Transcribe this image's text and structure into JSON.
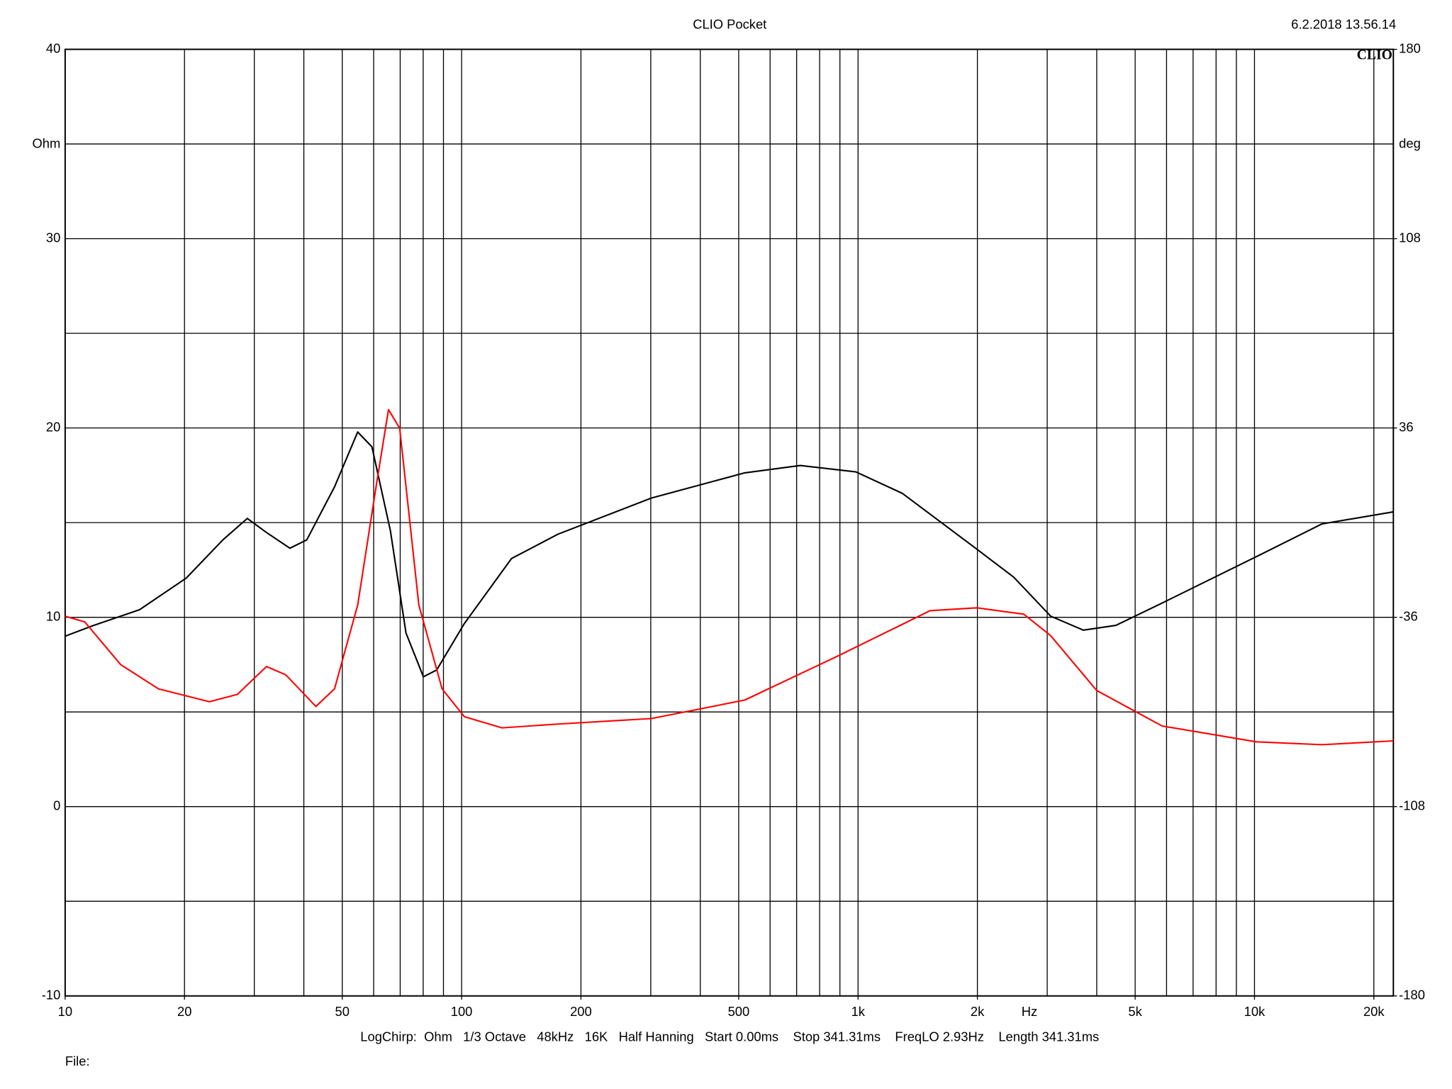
{
  "chart_data": {
    "type": "line",
    "title": "CLIO Pocket",
    "timestamp": "6.2.2018 13.56.14",
    "logo": "CLIO",
    "footer": "LogChirp:  Ohm   1/3 Octave   48kHz   16K   Half Hanning   Start 0.00ms    Stop 341.31ms    FreqLO 2.93Hz    Length 341.31ms",
    "file_label": "File:",
    "y_label": "Ohm",
    "y2_label": "deg",
    "x_unit": "Hz",
    "xscale": "log",
    "grid": true,
    "xlim": [
      10,
      22400
    ],
    "xticks": [
      10,
      20,
      50,
      100,
      200,
      500,
      {
        "value": 1000,
        "label": "1k"
      },
      {
        "value": 2000,
        "label": "2k"
      },
      {
        "value": 5000,
        "label": "5k"
      },
      {
        "value": 10000,
        "label": "10k"
      },
      {
        "value": 20000,
        "label": "20k"
      }
    ],
    "xgrid": [
      10,
      20,
      30,
      40,
      50,
      60,
      70,
      80,
      90,
      100,
      200,
      300,
      400,
      500,
      600,
      700,
      800,
      900,
      1000,
      2000,
      3000,
      4000,
      5000,
      6000,
      7000,
      8000,
      9000,
      10000,
      20000
    ],
    "ylim": [
      -10,
      40
    ],
    "yticks": [
      -10,
      0,
      10,
      20,
      30,
      40
    ],
    "ygrid": [
      -5,
      5,
      15,
      25,
      35
    ],
    "y2lim": [
      -180,
      180
    ],
    "y2ticks": [
      -180,
      -108,
      -36,
      36,
      108,
      180
    ],
    "series": [
      {
        "color": "#000000",
        "x": [
          10,
          11.8,
          15.4,
          20.2,
          25,
          28.8,
          32.2,
          36.9,
          40.7,
          47.8,
          54.7,
          59.4,
          66.1,
          72.4,
          80.1,
          86.5,
          101.6,
          133.6,
          175,
          301,
          518,
          715,
          987,
          1293,
          1994,
          2470,
          3060,
          3700,
          4470,
          5850,
          10100,
          14800,
          22400
        ],
        "values": [
          9.0,
          9.57,
          10.4,
          12.07,
          14.09,
          15.22,
          14.48,
          13.65,
          14.09,
          16.89,
          19.79,
          19.0,
          14.58,
          9.17,
          6.86,
          7.21,
          9.67,
          13.1,
          14.39,
          16.3,
          17.63,
          18.02,
          17.68,
          16.55,
          13.6,
          12.12,
          10.06,
          9.32,
          9.57,
          10.75,
          13.2,
          14.93,
          15.57
        ]
      },
      {
        "color": "#ff0000",
        "x": [
          10,
          11.2,
          13.8,
          17.2,
          23.1,
          27.2,
          32.2,
          36,
          42.9,
          47.8,
          54.7,
          61,
          65.4,
          69.8,
          78,
          89.3,
          101.6,
          126.5,
          175,
          301,
          518,
          886,
          1520,
          1994,
          2620,
          3060,
          4000,
          5850,
          10100,
          14800,
          22400
        ],
        "values": [
          10.06,
          9.76,
          7.5,
          6.22,
          5.54,
          5.93,
          7.4,
          6.96,
          5.29,
          6.22,
          10.65,
          17.04,
          20.97,
          19.99,
          10.65,
          6.22,
          4.75,
          4.16,
          4.36,
          4.65,
          5.63,
          7.94,
          10.35,
          10.5,
          10.16,
          9.03,
          6.13,
          4.26,
          3.42,
          3.27,
          3.47
        ]
      }
    ]
  }
}
